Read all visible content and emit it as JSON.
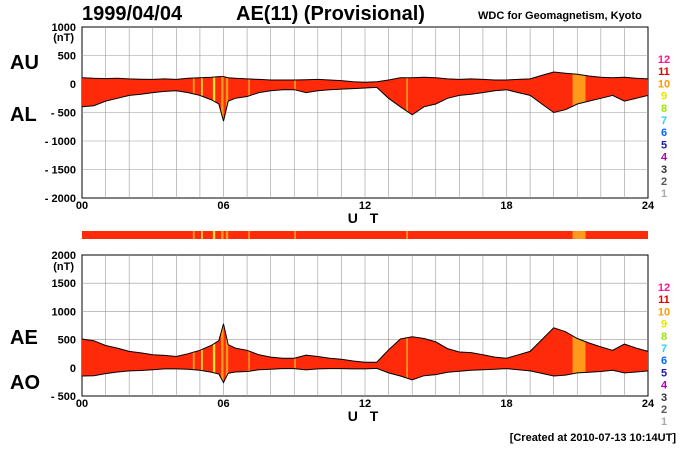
{
  "header": {
    "date": "1999/04/04",
    "title": "AE(11) (Provisional)",
    "source": "WDC for Geomagnetism, Kyoto"
  },
  "footer": "[Created at 2010-07-13 10:14UT]",
  "chart_data": [
    {
      "type": "area",
      "name": "top-panel",
      "series_labels": [
        "AU",
        "AL"
      ],
      "unit_label": "(nT)",
      "ylim": [
        -2000,
        1000
      ],
      "yticks": [
        "1000",
        "500",
        "0",
        "- 500",
        "- 1000",
        "- 1500",
        "- 2000"
      ],
      "xticks": [
        "00",
        "06",
        "12",
        "18",
        "24"
      ],
      "xlabel": "U T",
      "x_hours": [
        0,
        0.5,
        1,
        1.5,
        2,
        2.5,
        3,
        3.5,
        4,
        4.5,
        5,
        5.5,
        5.8,
        6,
        6.2,
        6.5,
        7,
        7.5,
        8,
        8.5,
        9,
        9.5,
        10,
        10.5,
        11,
        11.5,
        12,
        12.5,
        13,
        13.5,
        14,
        14.5,
        15,
        15.5,
        16,
        16.5,
        17,
        17.5,
        18,
        18.5,
        19,
        19.5,
        20,
        20.5,
        21,
        21.5,
        22,
        22.5,
        23,
        23.5,
        24
      ],
      "AU": [
        110,
        100,
        95,
        100,
        90,
        85,
        80,
        90,
        80,
        100,
        110,
        120,
        130,
        130,
        110,
        100,
        90,
        80,
        70,
        70,
        70,
        75,
        80,
        70,
        60,
        40,
        30,
        40,
        70,
        110,
        110,
        120,
        110,
        90,
        80,
        90,
        80,
        70,
        70,
        80,
        90,
        150,
        210,
        190,
        170,
        140,
        120,
        110,
        120,
        100,
        90
      ],
      "AL": [
        -400,
        -380,
        -300,
        -250,
        -200,
        -180,
        -150,
        -130,
        -120,
        -150,
        -200,
        -280,
        -350,
        -650,
        -300,
        -250,
        -220,
        -150,
        -120,
        -100,
        -100,
        -150,
        -120,
        -100,
        -90,
        -80,
        -70,
        -60,
        -250,
        -400,
        -540,
        -400,
        -350,
        -250,
        -200,
        -180,
        -150,
        -120,
        -100,
        -150,
        -200,
        -350,
        -500,
        -450,
        -350,
        -300,
        -250,
        -200,
        -300,
        -250,
        -200
      ]
    },
    {
      "type": "area",
      "name": "bottom-panel",
      "series_labels": [
        "AE",
        "AO"
      ],
      "unit_label": "(nT)",
      "ylim": [
        -500,
        2000
      ],
      "yticks": [
        "2000",
        "1500",
        "1000",
        "500",
        "0",
        "- 500"
      ],
      "xticks": [
        "00",
        "06",
        "12",
        "18",
        "24"
      ],
      "xlabel": "U T",
      "x_hours": [
        0,
        0.5,
        1,
        1.5,
        2,
        2.5,
        3,
        3.5,
        4,
        4.5,
        5,
        5.5,
        5.8,
        6,
        6.2,
        6.5,
        7,
        7.5,
        8,
        8.5,
        9,
        9.5,
        10,
        10.5,
        11,
        11.5,
        12,
        12.5,
        13,
        13.5,
        14,
        14.5,
        15,
        15.5,
        16,
        16.5,
        17,
        17.5,
        18,
        18.5,
        19,
        19.5,
        20,
        20.5,
        21,
        21.5,
        22,
        22.5,
        23,
        23.5,
        24
      ],
      "AE": [
        510,
        480,
        395,
        350,
        290,
        265,
        230,
        220,
        200,
        250,
        310,
        400,
        480,
        780,
        410,
        350,
        310,
        230,
        190,
        170,
        170,
        225,
        200,
        170,
        150,
        120,
        100,
        100,
        320,
        510,
        550,
        520,
        460,
        340,
        280,
        270,
        230,
        190,
        170,
        230,
        290,
        500,
        710,
        640,
        520,
        440,
        370,
        310,
        420,
        350,
        290
      ],
      "AO": [
        -145,
        -140,
        -103,
        -75,
        -55,
        -48,
        -35,
        -20,
        -20,
        -25,
        -45,
        -80,
        -110,
        -260,
        -95,
        -75,
        -65,
        -35,
        -25,
        -15,
        -15,
        -38,
        -20,
        -15,
        -15,
        -20,
        -20,
        -10,
        -90,
        -145,
        -215,
        -140,
        -120,
        -80,
        -60,
        -45,
        -35,
        -25,
        -15,
        -35,
        -55,
        -100,
        -145,
        -130,
        -90,
        -80,
        -65,
        -45,
        -90,
        -75,
        -55
      ]
    }
  ],
  "activity_scale": {
    "levels": [
      "12",
      "11",
      "10",
      "9",
      "8",
      "7",
      "6",
      "5",
      "4",
      "3",
      "2",
      "1"
    ],
    "colors": [
      "#ff1493",
      "#e60000",
      "#ff9900",
      "#e6e600",
      "#99e600",
      "#33ccff",
      "#0066ff",
      "#1a1aa6",
      "#b300b3",
      "#333333",
      "#555555",
      "#aaaaaa"
    ]
  },
  "colors": {
    "fill": "#ff2a0a",
    "orange": "#ff9a1a",
    "yellow": "#f5e62a",
    "grid": "#9a9a9a"
  },
  "highlights": [
    {
      "from": 4.7,
      "to": 4.78,
      "color": "orange"
    },
    {
      "from": 5.05,
      "to": 5.12,
      "color": "yellow"
    },
    {
      "from": 5.55,
      "to": 5.65,
      "color": "yellow"
    },
    {
      "from": 5.9,
      "to": 6.0,
      "color": "orange"
    },
    {
      "from": 6.1,
      "to": 6.2,
      "color": "orange"
    },
    {
      "from": 7.05,
      "to": 7.12,
      "color": "orange"
    },
    {
      "from": 9.0,
      "to": 9.07,
      "color": "orange"
    },
    {
      "from": 13.75,
      "to": 13.82,
      "color": "orange"
    },
    {
      "from": 20.8,
      "to": 21.35,
      "color": "orange"
    }
  ]
}
